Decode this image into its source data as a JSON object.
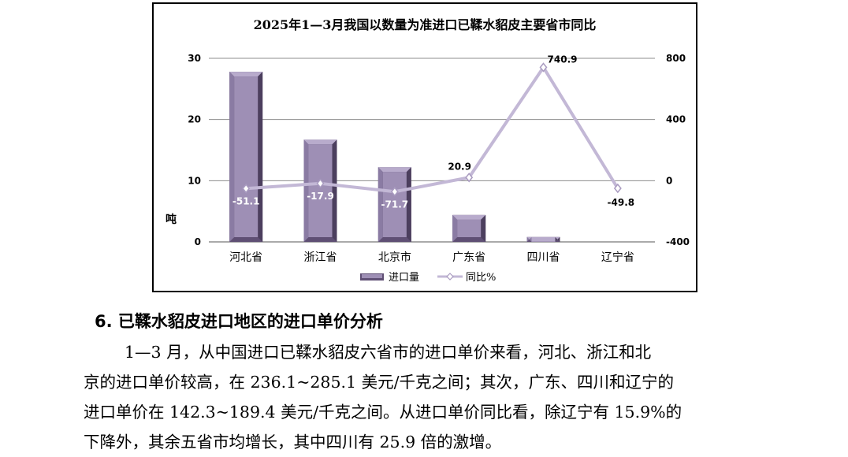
{
  "chart_data": {
    "type": "bar+line",
    "title": "2025年1—3月我国以数量为准进口已鞣水貂皮主要省市同比",
    "categories": [
      "河北省",
      "浙江省",
      "北京市",
      "广东省",
      "四川省",
      "辽宁省"
    ],
    "series": [
      {
        "name": "进口量",
        "type": "bar",
        "axis": "left",
        "color": "#9e8fb5",
        "values": [
          27.8,
          16.7,
          12.2,
          4.4,
          0.8,
          0
        ]
      },
      {
        "name": "同比%",
        "type": "line",
        "axis": "right",
        "color": "#c3b8d6",
        "values": [
          -51.1,
          -17.9,
          -71.7,
          20.9,
          740.9,
          -49.8
        ],
        "labels": [
          "-51.1",
          "-17.9",
          "-71.7",
          "20.9",
          "740.9",
          "-49.8"
        ]
      }
    ],
    "y_left": {
      "label": "吨",
      "min": 0,
      "max": 30,
      "ticks": [
        "0",
        "10",
        "20",
        "30"
      ]
    },
    "y_right": {
      "min": -400,
      "max": 800,
      "ticks": [
        "-400",
        "0",
        "400",
        "800"
      ]
    },
    "grid": true,
    "legend": "bottom"
  },
  "article": {
    "heading": "6. 已鞣水貂皮进口地区的进口单价分析",
    "lines": [
      "1—3 月，从中国进口已鞣水貂皮六省市的进口单价来看，河北、浙江和北",
      "京的进口单价较高，在 236.1~285.1 美元/千克之间；其次，广东、四川和辽宁的",
      "进口单价在 142.3~189.4 美元/千克之间。从进口单价同比看，除辽宁有 15.9%的",
      "下降外，其余五省市均增长，其中四川有 25.9 倍的激增。"
    ]
  }
}
